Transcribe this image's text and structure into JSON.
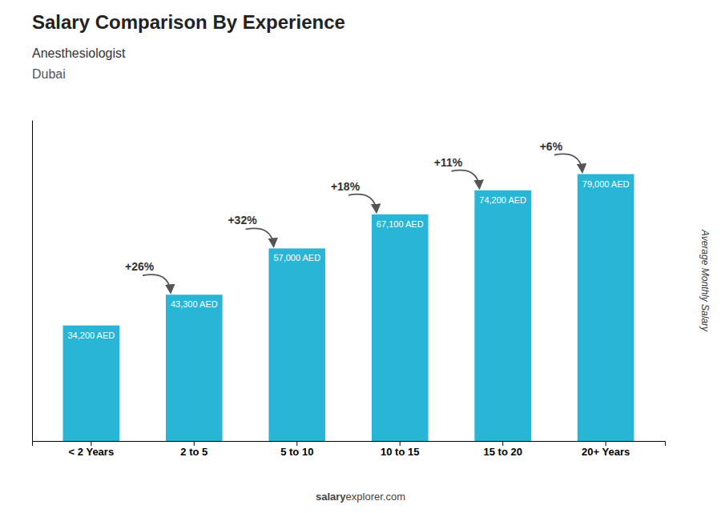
{
  "chart_data": {
    "type": "bar",
    "title": "Salary Comparison By Experience",
    "subtitle": "Anesthesiologist",
    "city": "Dubai",
    "categories": [
      "< 2 Years",
      "2 to 5",
      "5 to 10",
      "10 to 15",
      "15 to 20",
      "20+ Years"
    ],
    "values": [
      34200,
      43300,
      57000,
      67100,
      74200,
      79000
    ],
    "value_labels": [
      "34,200 AED",
      "43,300 AED",
      "57,000 AED",
      "67,100 AED",
      "74,200 AED",
      "79,000 AED"
    ],
    "data_labels": true,
    "annotations": [
      "+26%",
      "+32%",
      "+18%",
      "+11%",
      "+6%"
    ],
    "color": "#29b6d6",
    "ylabel": "Average Monthly Salary",
    "ylim": [
      0,
      95000
    ],
    "tick_labels": "x",
    "grid": false,
    "footer": [
      "salary",
      "explorer.com"
    ]
  }
}
